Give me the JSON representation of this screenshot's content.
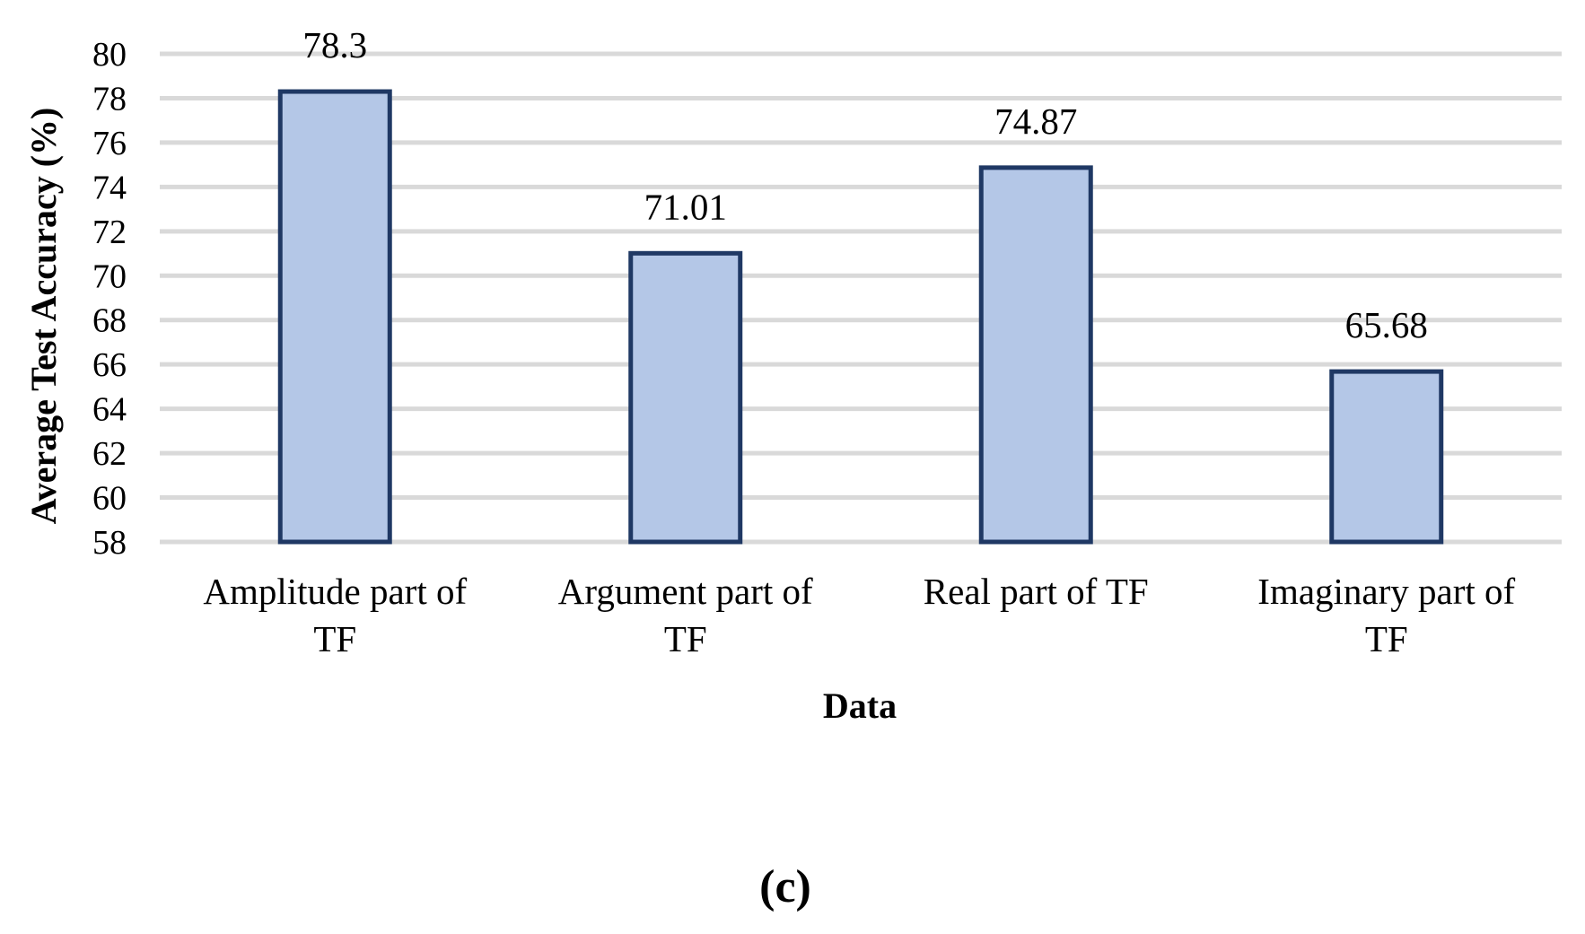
{
  "chart_data": {
    "type": "bar",
    "categories": [
      [
        "Amplitude part of",
        "TF"
      ],
      [
        "Argument part of",
        "TF"
      ],
      [
        "Real part of TF"
      ],
      [
        "Imaginary part of",
        "TF"
      ]
    ],
    "values": [
      78.3,
      71.01,
      74.87,
      65.68
    ],
    "data_labels": [
      "78.3",
      "71.01",
      "74.87",
      "65.68"
    ],
    "ylabel": "Average Test Accuracy (%)",
    "xlabel": "Data",
    "ylim": [
      58,
      80
    ],
    "yticks": [
      58,
      60,
      62,
      64,
      66,
      68,
      70,
      72,
      74,
      76,
      78,
      80
    ],
    "grid": true,
    "legend": "none",
    "colors": {
      "bar_fill": "#b4c7e7",
      "bar_border": "#1f3864",
      "grid": "#d9d9d9"
    }
  },
  "panel_label": "(c)"
}
